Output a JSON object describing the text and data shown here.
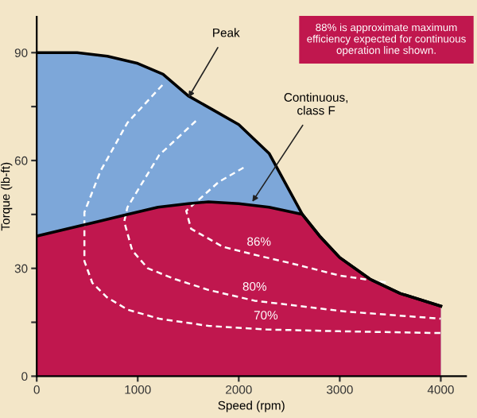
{
  "chart_data": {
    "type": "area",
    "xlabel": "Speed (rpm)",
    "ylabel": "Torque (lb-ft)",
    "xlim": [
      0,
      4250
    ],
    "ylim": [
      0,
      100
    ],
    "xticks": [
      0,
      1000,
      2000,
      3000,
      4000
    ],
    "yticks": [
      0,
      {
        "value": 15,
        "label": null
      },
      30,
      {
        "value": 45,
        "label": null
      },
      60,
      {
        "value": 75,
        "label": null
      },
      90
    ],
    "grid": false,
    "legend": false,
    "series": [
      {
        "color": "#7da7d9",
        "x": [
          0,
          400,
          700,
          1000,
          1250,
          1500,
          1750,
          2000,
          2300,
          2630,
          2800,
          3000,
          3300,
          3600,
          4000
        ],
        "values": [
          90,
          90,
          89,
          87,
          84,
          78,
          74,
          70,
          62,
          45,
          39,
          33,
          27,
          23,
          19.5
        ]
      },
      {
        "color": "#c0174e",
        "x": [
          0,
          300,
          600,
          900,
          1200,
          1500,
          1700,
          2000,
          2300,
          2630,
          2800,
          3000,
          3300,
          3600,
          4000
        ],
        "values": [
          39,
          41,
          43,
          45,
          47,
          48,
          48.5,
          48,
          47,
          45,
          39,
          33,
          27,
          23,
          19.5
        ]
      },
      {
        "type": "line",
        "name": "86%",
        "color": "#ffffff",
        "line_style": "dashed",
        "x": [
          2047,
          1800,
          1480,
          1528,
          1843,
          2200,
          2520,
          3000,
          3480
        ],
        "values": [
          58,
          54,
          46,
          41,
          36,
          33.5,
          31.4,
          28,
          26
        ]
      },
      {
        "type": "line",
        "name": "80%",
        "color": "#ffffff",
        "line_style": "dashed",
        "x": [
          1575,
          1212,
          898,
          866,
          945,
          1100,
          1370,
          1700,
          2157,
          3055,
          4000
        ],
        "values": [
          71,
          61.5,
          47,
          43,
          35,
          30,
          27,
          24,
          21,
          18,
          16
        ]
      },
      {
        "type": "line",
        "name": "70%",
        "color": "#ffffff",
        "line_style": "dashed",
        "x": [
          1244,
          898,
          630,
          472,
          472,
          550,
          693,
          900,
          1212,
          1700,
          2268,
          3000,
          4000
        ],
        "values": [
          81,
          70.5,
          57,
          45.6,
          32,
          26,
          22,
          18.5,
          16,
          14,
          13,
          12.5,
          12
        ]
      }
    ],
    "annotations": [
      {
        "text": "Peak",
        "x": 1480,
        "y": 76.5
      },
      {
        "text": "Continuous,\nclass F",
        "x": 2110,
        "y": 47.5
      },
      "88% is approximate maximum\nefficiency expected for continuous\noperation line shown."
    ]
  }
}
